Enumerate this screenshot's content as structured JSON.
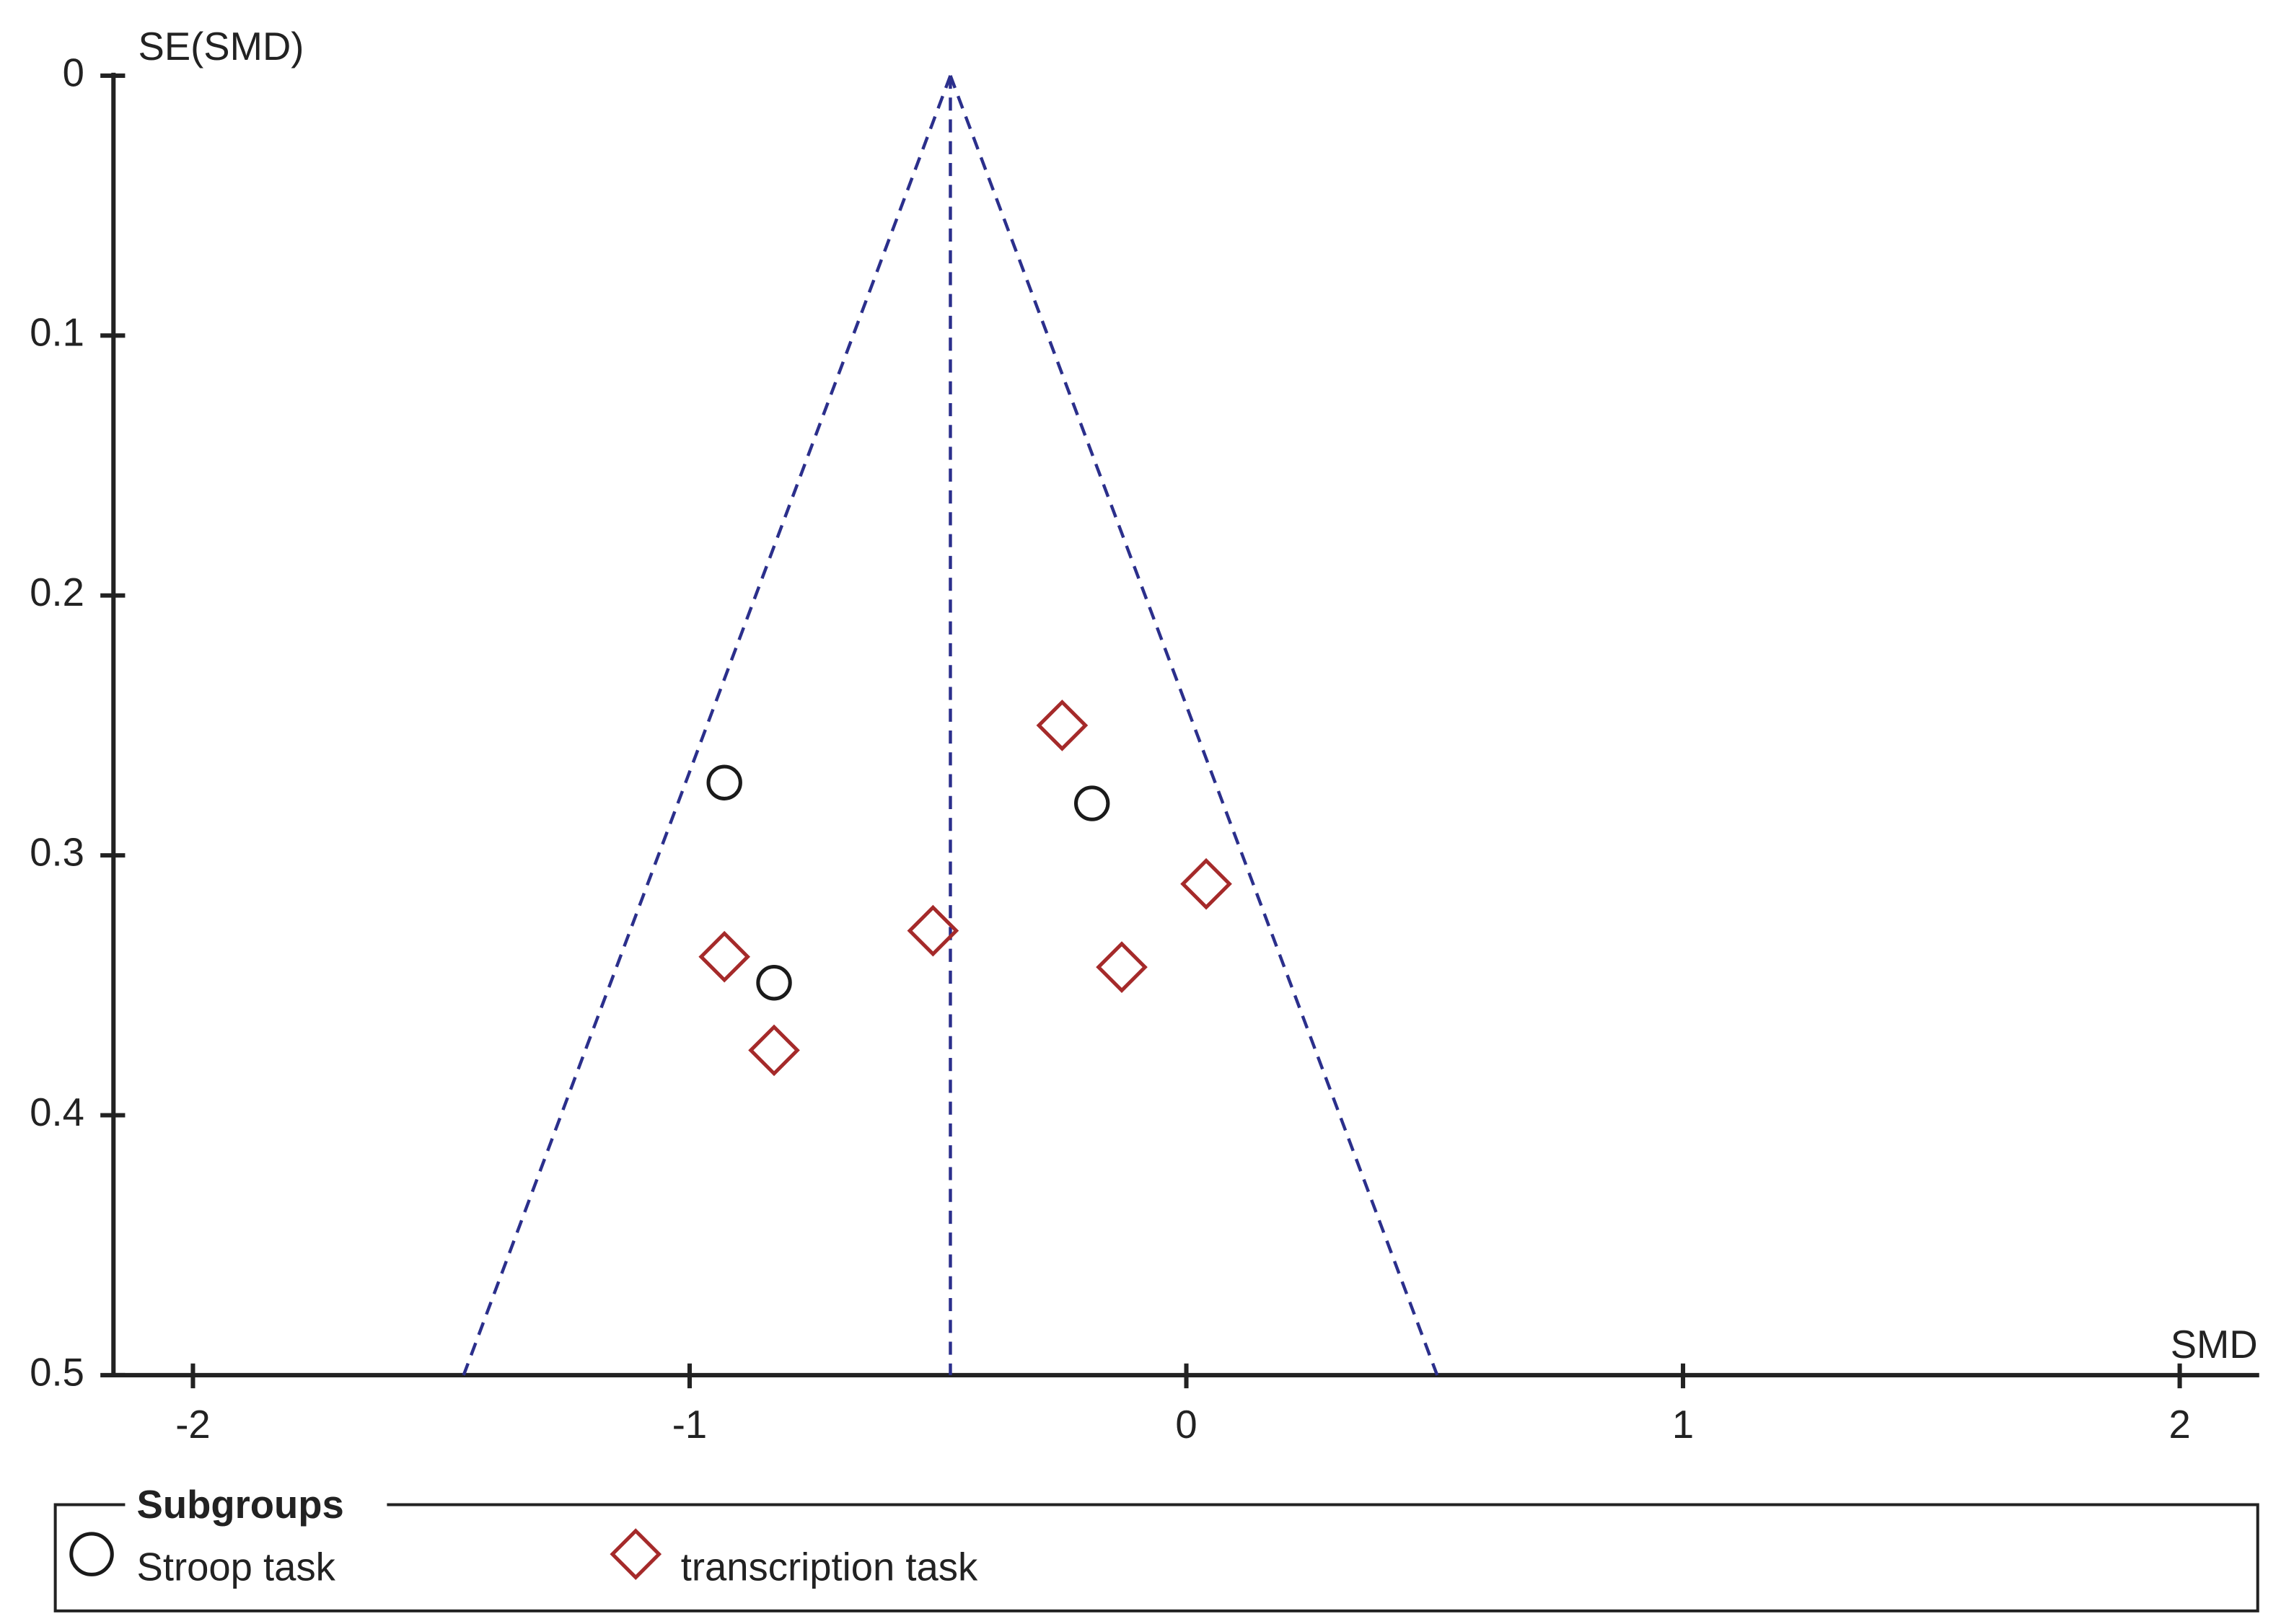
{
  "chart_data": {
    "type": "scatter",
    "y_label": "SE(SMD)",
    "x_label": "SMD",
    "legend_title": "Subgroups",
    "xlim": [
      -2.16,
      2.16
    ],
    "xticks": [
      -2,
      -1,
      0,
      1,
      2
    ],
    "ylim": [
      0,
      0.5
    ],
    "yticks": [
      0,
      0.1,
      0.2,
      0.3,
      0.4,
      0.5
    ],
    "y_inverted": true,
    "pooled_effect": -0.475,
    "funnel_limits": [
      -1.455,
      0.505
    ],
    "funnel_color": "#2b2f8c",
    "series": [
      {
        "name": "Stroop task",
        "marker": "circle",
        "color": "#1a1a1a",
        "x": [
          -0.93,
          -0.19,
          -0.83
        ],
        "values": [
          0.272,
          0.28,
          0.349
        ]
      },
      {
        "name": "transcription task",
        "marker": "diamond",
        "color": "#a52a2a",
        "x": [
          -0.25,
          0.04,
          -0.51,
          -0.93,
          -0.13,
          -0.83
        ],
        "values": [
          0.25,
          0.311,
          0.329,
          0.339,
          0.343,
          0.375
        ]
      }
    ]
  }
}
